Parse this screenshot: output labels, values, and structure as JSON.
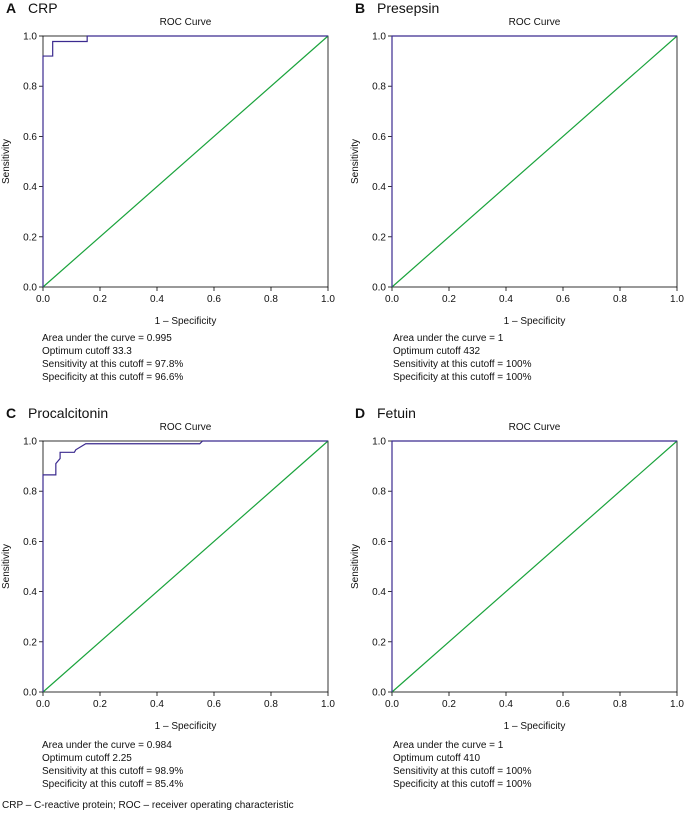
{
  "footnote": "CRP – C-reactive protein; ROC – receiver operating characteristic",
  "chart_data": [
    {
      "type": "line",
      "panel_letter": "A",
      "panel_title": "CRP",
      "title": "ROC Curve",
      "xlabel": "1 – Specificity",
      "ylabel": "Sensitivity",
      "xlim": [
        0,
        1
      ],
      "ylim": [
        0,
        1
      ],
      "xticks": [
        "0.0",
        "0.2",
        "0.4",
        "0.6",
        "0.8",
        "1.0"
      ],
      "yticks": [
        "0.0",
        "0.2",
        "0.4",
        "0.6",
        "0.8",
        "1.0"
      ],
      "grid": false,
      "series": [
        {
          "color": "#3b2a8f",
          "x": [
            0,
            0,
            0.034,
            0.034,
            0.155,
            0.155,
            1.0
          ],
          "y": [
            0,
            0.92,
            0.92,
            0.978,
            0.978,
            1.0,
            1.0
          ]
        },
        {
          "color": "#1aa33c",
          "x": [
            0,
            1
          ],
          "y": [
            0,
            1
          ]
        }
      ],
      "stats": [
        "Area under the curve = 0.995",
        "Optimum cutoff 33.3",
        "Sensitivity at this cutoff = 97.8%",
        "Specificity at this cutoff = 96.6%"
      ]
    },
    {
      "type": "line",
      "panel_letter": "B",
      "panel_title": "Presepsin",
      "title": "ROC Curve",
      "xlabel": "1 – Specificity",
      "ylabel": "Sensitivity",
      "xlim": [
        0,
        1
      ],
      "ylim": [
        0,
        1
      ],
      "xticks": [
        "0.0",
        "0.2",
        "0.4",
        "0.6",
        "0.8",
        "1.0"
      ],
      "yticks": [
        "0.0",
        "0.2",
        "0.4",
        "0.6",
        "0.8",
        "1.0"
      ],
      "grid": false,
      "series": [
        {
          "color": "#3b2a8f",
          "x": [
            0,
            0,
            1.0
          ],
          "y": [
            0,
            1.0,
            1.0
          ]
        },
        {
          "color": "#1aa33c",
          "x": [
            0,
            1
          ],
          "y": [
            0,
            1
          ]
        }
      ],
      "stats": [
        "Area under the curve = 1",
        "Optimum cutoff 432",
        "Sensitivity at this cutoff = 100%",
        "Specificity at this cutoff = 100%"
      ]
    },
    {
      "type": "line",
      "panel_letter": "C",
      "panel_title": "Procalcitonin",
      "title": "ROC Curve",
      "xlabel": "1 – Specificity",
      "ylabel": "Sensitivity",
      "xlim": [
        0,
        1
      ],
      "ylim": [
        0,
        1
      ],
      "xticks": [
        "0.0",
        "0.2",
        "0.4",
        "0.6",
        "0.8",
        "1.0"
      ],
      "yticks": [
        "0.0",
        "0.2",
        "0.4",
        "0.6",
        "0.8",
        "1.0"
      ],
      "grid": false,
      "series": [
        {
          "color": "#3b2a8f",
          "x": [
            0,
            0,
            0.045,
            0.045,
            0.06,
            0.06,
            0.085,
            0.11,
            0.115,
            0.15,
            0.55,
            0.56,
            1.0
          ],
          "y": [
            0,
            0.865,
            0.865,
            0.91,
            0.93,
            0.955,
            0.955,
            0.955,
            0.965,
            0.989,
            0.989,
            1.0,
            1.0
          ]
        },
        {
          "color": "#1aa33c",
          "x": [
            0,
            1
          ],
          "y": [
            0,
            1
          ]
        }
      ],
      "stats": [
        "Area under the curve = 0.984",
        "Optimum cutoff 2.25",
        "Sensitivity at this cutoff = 98.9%",
        "Specificity at this cutoff = 85.4%"
      ]
    },
    {
      "type": "line",
      "panel_letter": "D",
      "panel_title": "Fetuin",
      "title": "ROC Curve",
      "xlabel": "1 – Specificity",
      "ylabel": "Sensitivity",
      "xlim": [
        0,
        1
      ],
      "ylim": [
        0,
        1
      ],
      "xticks": [
        "0.0",
        "0.2",
        "0.4",
        "0.6",
        "0.8",
        "1.0"
      ],
      "yticks": [
        "0.0",
        "0.2",
        "0.4",
        "0.6",
        "0.8",
        "1.0"
      ],
      "grid": false,
      "series": [
        {
          "color": "#3b2a8f",
          "x": [
            0,
            0,
            1.0
          ],
          "y": [
            0,
            1.0,
            1.0
          ]
        },
        {
          "color": "#1aa33c",
          "x": [
            0,
            1
          ],
          "y": [
            0,
            1
          ]
        }
      ],
      "stats": [
        "Area under the curve = 1",
        "Optimum cutoff 410",
        "Sensitivity at this cutoff = 100%",
        "Specificity at this cutoff = 100%"
      ]
    }
  ]
}
